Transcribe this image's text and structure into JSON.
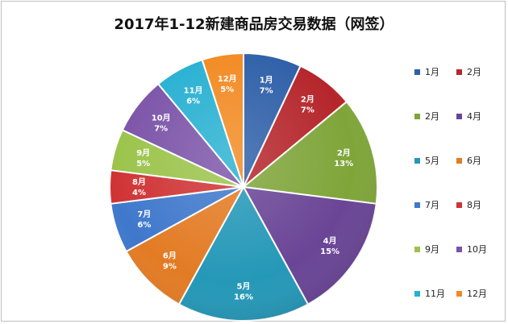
{
  "chart_data": {
    "type": "pie",
    "title": "2017年1-12新建商品房交易数据（网签）",
    "slices": [
      {
        "label": "1月",
        "value_label": "7%",
        "value": 7,
        "color": "#2e5fa8"
      },
      {
        "label": "2月",
        "value_label": "7%",
        "value": 7,
        "color": "#b5262b"
      },
      {
        "label": "2月",
        "value_label": "13%",
        "value": 13,
        "color": "#7fa53a"
      },
      {
        "label": "4月",
        "value_label": "15%",
        "value": 15,
        "color": "#6a4596"
      },
      {
        "label": "5月",
        "value_label": "16%",
        "value": 16,
        "color": "#2598b8"
      },
      {
        "label": "6月",
        "value_label": "9%",
        "value": 9,
        "color": "#e37b24"
      },
      {
        "label": "7月",
        "value_label": "6%",
        "value": 6,
        "color": "#3f78cc"
      },
      {
        "label": "8月",
        "value_label": "4%",
        "value": 4,
        "color": "#cf3334"
      },
      {
        "label": "9月",
        "value_label": "5%",
        "value": 5,
        "color": "#9bc34a"
      },
      {
        "label": "10月",
        "value_label": "7%",
        "value": 7,
        "color": "#7b53a8"
      },
      {
        "label": "11月",
        "value_label": "6%",
        "value": 6,
        "color": "#27b0d2"
      },
      {
        "label": "12月",
        "value_label": "5%",
        "value": 5,
        "color": "#f28a22"
      }
    ],
    "legend": {
      "position": "right",
      "entries": [
        "1月",
        "2月",
        "2月",
        "4月",
        "5月",
        "6月",
        "7月",
        "8月",
        "9月",
        "10月",
        "11月",
        "12月"
      ]
    }
  }
}
